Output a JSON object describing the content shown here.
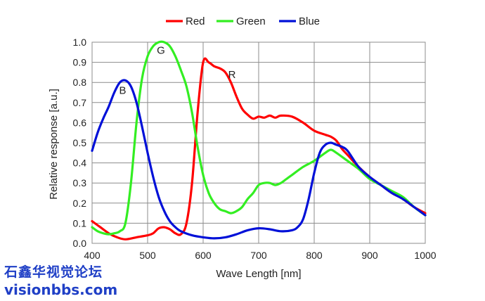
{
  "chart_data": {
    "type": "line",
    "title": "",
    "xlabel": "Wave Length [nm]",
    "ylabel": "Relative response [a.u.]",
    "xlim": [
      400,
      1000
    ],
    "ylim": [
      0,
      1.0
    ],
    "x_ticks": [
      400,
      500,
      600,
      700,
      800,
      900,
      1000
    ],
    "y_ticks": [
      0.0,
      0.1,
      0.2,
      0.3,
      0.4,
      0.5,
      0.6,
      0.7,
      0.8,
      0.9,
      1.0
    ],
    "x_tick_labels": [
      "400",
      "500",
      "600",
      "700",
      "800",
      "900",
      "1000"
    ],
    "y_tick_labels": [
      "0.0",
      "0.1",
      "0.2",
      "0.3",
      "0.4",
      "0.5",
      "0.6",
      "0.7",
      "0.8",
      "0.9",
      "1.0"
    ],
    "grid": true,
    "legend_position": "top-center",
    "series": [
      {
        "name": "Red",
        "color": "#ff0000",
        "label": "R",
        "label_at": [
          652,
          0.84
        ],
        "points": [
          [
            400,
            0.11
          ],
          [
            415,
            0.08
          ],
          [
            430,
            0.05
          ],
          [
            445,
            0.03
          ],
          [
            460,
            0.02
          ],
          [
            480,
            0.03
          ],
          [
            500,
            0.04
          ],
          [
            510,
            0.05
          ],
          [
            520,
            0.075
          ],
          [
            530,
            0.08
          ],
          [
            540,
            0.07
          ],
          [
            550,
            0.05
          ],
          [
            560,
            0.045
          ],
          [
            570,
            0.1
          ],
          [
            580,
            0.3
          ],
          [
            590,
            0.65
          ],
          [
            600,
            0.9
          ],
          [
            610,
            0.9
          ],
          [
            620,
            0.88
          ],
          [
            630,
            0.87
          ],
          [
            640,
            0.85
          ],
          [
            650,
            0.8
          ],
          [
            660,
            0.73
          ],
          [
            670,
            0.67
          ],
          [
            680,
            0.64
          ],
          [
            690,
            0.62
          ],
          [
            700,
            0.63
          ],
          [
            710,
            0.625
          ],
          [
            720,
            0.635
          ],
          [
            730,
            0.625
          ],
          [
            740,
            0.635
          ],
          [
            760,
            0.63
          ],
          [
            780,
            0.6
          ],
          [
            800,
            0.56
          ],
          [
            820,
            0.54
          ],
          [
            830,
            0.53
          ],
          [
            840,
            0.51
          ],
          [
            850,
            0.47
          ],
          [
            860,
            0.44
          ],
          [
            880,
            0.38
          ],
          [
            900,
            0.33
          ],
          [
            920,
            0.29
          ],
          [
            940,
            0.25
          ],
          [
            960,
            0.22
          ],
          [
            980,
            0.18
          ],
          [
            1000,
            0.15
          ]
        ]
      },
      {
        "name": "Green",
        "color": "#33ee22",
        "label": "G",
        "label_at": [
          524,
          0.96
        ],
        "points": [
          [
            400,
            0.08
          ],
          [
            410,
            0.06
          ],
          [
            420,
            0.05
          ],
          [
            430,
            0.045
          ],
          [
            440,
            0.05
          ],
          [
            450,
            0.06
          ],
          [
            460,
            0.1
          ],
          [
            470,
            0.3
          ],
          [
            480,
            0.6
          ],
          [
            490,
            0.82
          ],
          [
            500,
            0.93
          ],
          [
            510,
            0.98
          ],
          [
            520,
            1.0
          ],
          [
            530,
            1.0
          ],
          [
            540,
            0.98
          ],
          [
            550,
            0.93
          ],
          [
            560,
            0.86
          ],
          [
            570,
            0.78
          ],
          [
            580,
            0.65
          ],
          [
            590,
            0.48
          ],
          [
            600,
            0.34
          ],
          [
            610,
            0.25
          ],
          [
            620,
            0.2
          ],
          [
            630,
            0.17
          ],
          [
            640,
            0.16
          ],
          [
            650,
            0.15
          ],
          [
            660,
            0.16
          ],
          [
            670,
            0.18
          ],
          [
            680,
            0.22
          ],
          [
            690,
            0.25
          ],
          [
            700,
            0.29
          ],
          [
            710,
            0.3
          ],
          [
            720,
            0.3
          ],
          [
            730,
            0.29
          ],
          [
            740,
            0.3
          ],
          [
            750,
            0.32
          ],
          [
            760,
            0.34
          ],
          [
            780,
            0.38
          ],
          [
            800,
            0.41
          ],
          [
            820,
            0.45
          ],
          [
            830,
            0.465
          ],
          [
            840,
            0.45
          ],
          [
            860,
            0.41
          ],
          [
            880,
            0.37
          ],
          [
            900,
            0.32
          ],
          [
            920,
            0.29
          ],
          [
            940,
            0.26
          ],
          [
            960,
            0.23
          ],
          [
            980,
            0.18
          ],
          [
            1000,
            0.14
          ]
        ]
      },
      {
        "name": "Blue",
        "color": "#0010d8",
        "label": "B",
        "label_at": [
          455,
          0.76
        ],
        "points": [
          [
            400,
            0.46
          ],
          [
            410,
            0.55
          ],
          [
            420,
            0.62
          ],
          [
            430,
            0.68
          ],
          [
            440,
            0.75
          ],
          [
            450,
            0.8
          ],
          [
            460,
            0.81
          ],
          [
            470,
            0.78
          ],
          [
            480,
            0.7
          ],
          [
            490,
            0.58
          ],
          [
            500,
            0.45
          ],
          [
            510,
            0.33
          ],
          [
            520,
            0.23
          ],
          [
            530,
            0.16
          ],
          [
            540,
            0.11
          ],
          [
            550,
            0.08
          ],
          [
            560,
            0.06
          ],
          [
            580,
            0.04
          ],
          [
            600,
            0.03
          ],
          [
            620,
            0.025
          ],
          [
            640,
            0.03
          ],
          [
            660,
            0.045
          ],
          [
            680,
            0.065
          ],
          [
            700,
            0.075
          ],
          [
            720,
            0.07
          ],
          [
            740,
            0.06
          ],
          [
            760,
            0.065
          ],
          [
            770,
            0.08
          ],
          [
            780,
            0.12
          ],
          [
            790,
            0.22
          ],
          [
            800,
            0.35
          ],
          [
            810,
            0.45
          ],
          [
            820,
            0.49
          ],
          [
            830,
            0.5
          ],
          [
            840,
            0.49
          ],
          [
            850,
            0.48
          ],
          [
            860,
            0.46
          ],
          [
            880,
            0.38
          ],
          [
            900,
            0.33
          ],
          [
            920,
            0.29
          ],
          [
            940,
            0.25
          ],
          [
            960,
            0.22
          ],
          [
            980,
            0.18
          ],
          [
            1000,
            0.14
          ]
        ]
      }
    ]
  },
  "watermark": {
    "line1": "石鑫华视觉论坛",
    "line2": "visionbbs.com",
    "color": "#1f3fc6"
  }
}
